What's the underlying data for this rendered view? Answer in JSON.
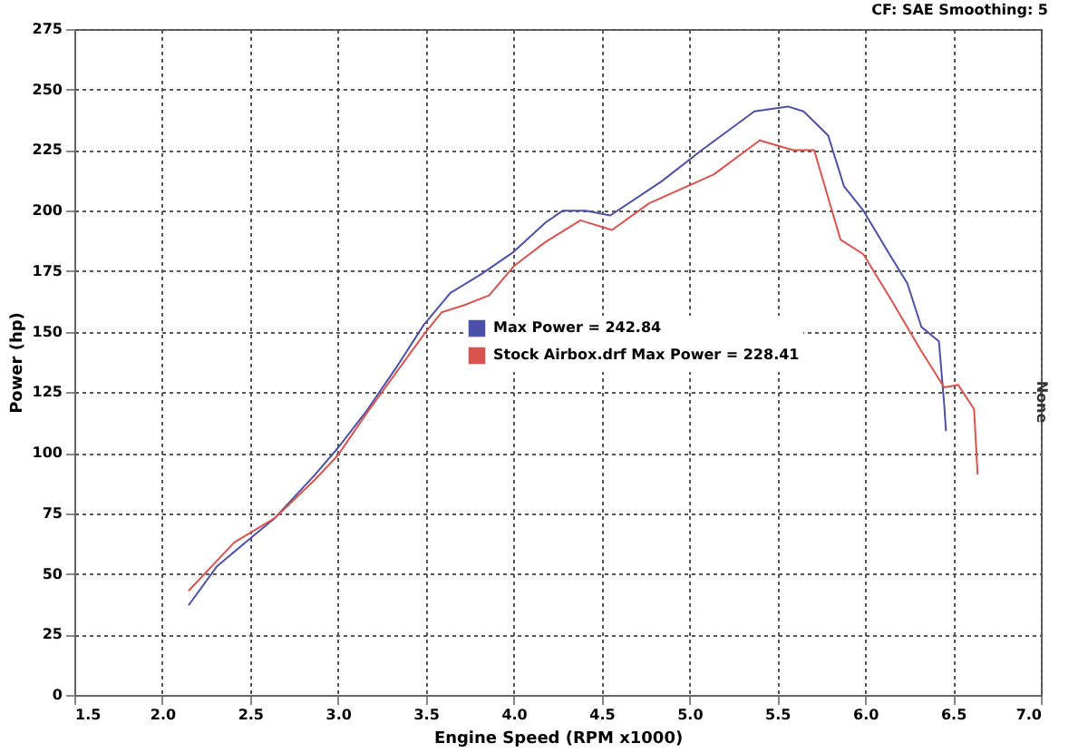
{
  "chart_data": {
    "type": "line",
    "xlabel": "Engine Speed (RPM x1000)",
    "ylabel": "Power (hp)",
    "y2label": "None",
    "annotations": [
      "CF: SAE  Smoothing: 5"
    ],
    "xlim": [
      1.5,
      7.0
    ],
    "ylim": [
      0,
      275
    ],
    "xticks": [
      {
        "value": 1.5,
        "label": "1.5"
      },
      {
        "value": 2,
        "label": "2.0"
      },
      {
        "value": 2.5,
        "label": "2.5"
      },
      {
        "value": 3,
        "label": "3.0"
      },
      {
        "value": 3.5,
        "label": "3.5"
      },
      {
        "value": 4,
        "label": "4.0"
      },
      {
        "value": 4.5,
        "label": "4.5"
      },
      {
        "value": 5,
        "label": "5.0"
      },
      {
        "value": 5.5,
        "label": "5.5"
      },
      {
        "value": 6,
        "label": "6.0"
      },
      {
        "value": 6.5,
        "label": "6.5"
      },
      {
        "value": 7,
        "label": "7.0"
      }
    ],
    "yticks": [
      0,
      25,
      50,
      75,
      100,
      125,
      150,
      175,
      200,
      225,
      250,
      275
    ],
    "grid": true,
    "legend": "center",
    "line_style": "solid",
    "series": [
      {
        "name": "Max Power = 242.84",
        "color": "#4b50a8",
        "x": [
          2.15,
          2.31,
          2.49,
          2.64,
          2.87,
          3.0,
          3.16,
          3.33,
          3.49,
          3.64,
          3.82,
          4.0,
          4.18,
          4.28,
          4.41,
          4.55,
          4.84,
          5.07,
          5.37,
          5.56,
          5.65,
          5.79,
          5.88,
          5.99,
          6.13,
          6.24,
          6.32,
          6.42,
          6.45,
          6.46
        ],
        "values": [
          37,
          53,
          64,
          73,
          91,
          102,
          117,
          135,
          153,
          166,
          174,
          183,
          195,
          200,
          200,
          198,
          212,
          225,
          241,
          243,
          241,
          231,
          210,
          200,
          183,
          170,
          152,
          146,
          120,
          109
        ]
      },
      {
        "name": "Stock Airbox.drf Max Power = 228.41",
        "color": "#d9534f",
        "x": [
          2.15,
          2.41,
          2.64,
          2.87,
          3.0,
          3.16,
          3.33,
          3.49,
          3.59,
          3.72,
          3.86,
          4.0,
          4.18,
          4.38,
          4.56,
          4.77,
          5.14,
          5.4,
          5.59,
          5.71,
          5.86,
          5.99,
          6.15,
          6.32,
          6.45,
          6.53,
          6.62,
          6.64
        ],
        "values": [
          43,
          63,
          73,
          89,
          99,
          116,
          133,
          149,
          158,
          161,
          165,
          177,
          187,
          196,
          192,
          203,
          215,
          229,
          225,
          225,
          188,
          182,
          163,
          142,
          127,
          128,
          118,
          91
        ]
      }
    ]
  }
}
